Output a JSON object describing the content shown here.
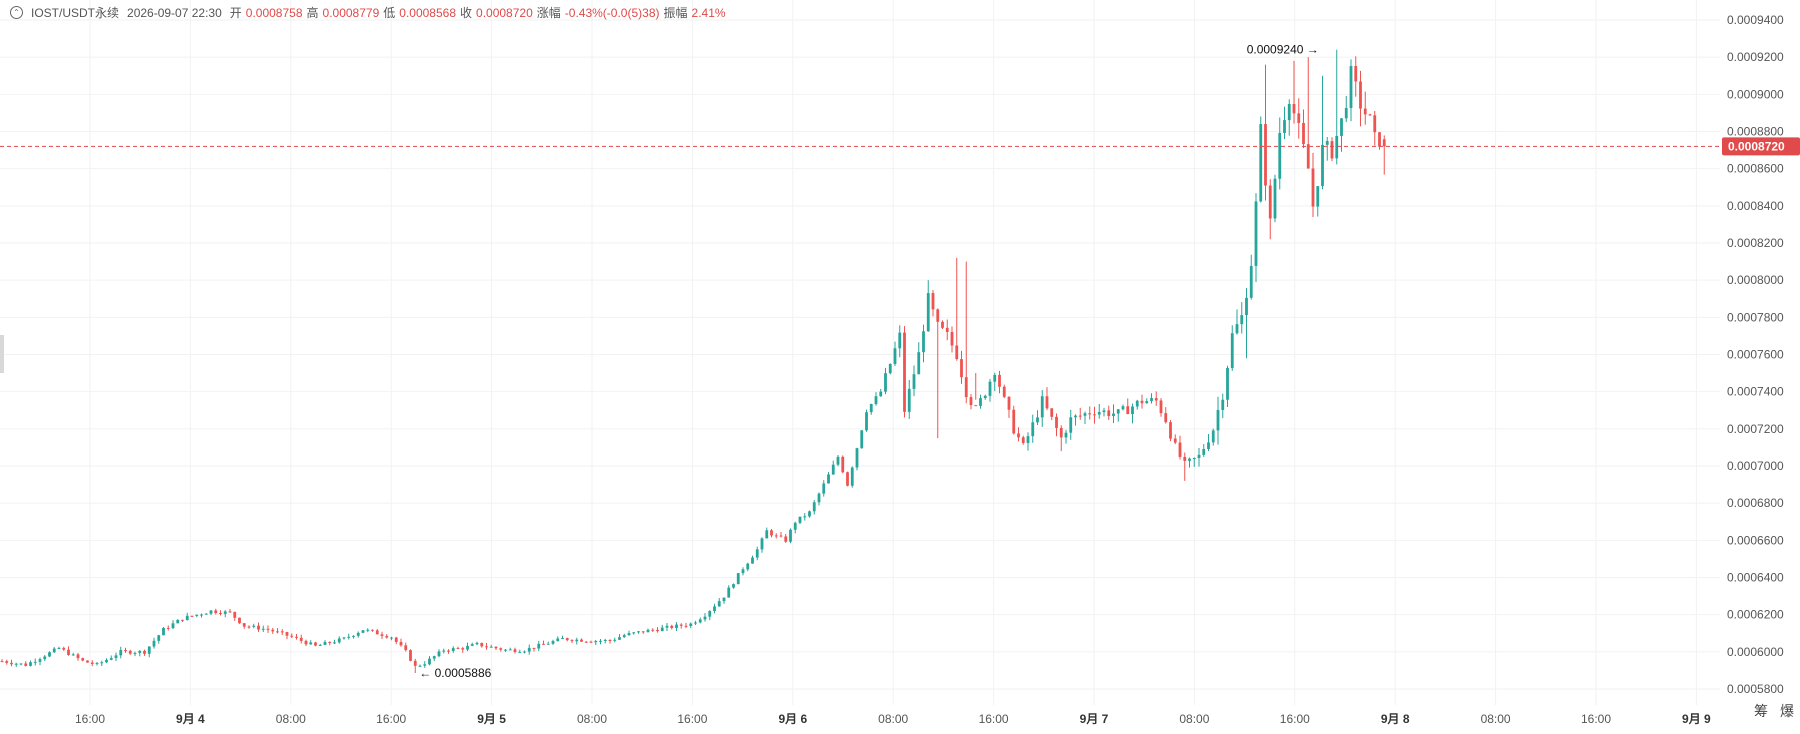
{
  "header": {
    "symbol": "IOST/USDT永续",
    "timestamp": "2026-09-07 22:30",
    "open_label": "开",
    "open": "0.0008758",
    "high_label": "高",
    "high": "0.0008779",
    "low_label": "低",
    "low": "0.0008568",
    "close_label": "收",
    "close": "0.0008720",
    "change_label": "涨幅",
    "change": "-0.43%(-0.0(5)38)",
    "amplitude_label": "振幅",
    "amplitude": "2.41%"
  },
  "colors": {
    "up": "#26a69a",
    "down": "#ef5350",
    "current_price": "#e04a4a",
    "grid": "#f2f2f2"
  },
  "icons": {
    "collapse": "chevron-up-circle-icon",
    "left_handle": "drag-handle-icon"
  },
  "corner": {
    "left": "筹",
    "right": "爆"
  },
  "current_price_label": "0.0008720",
  "chart_data": {
    "type": "candlestick",
    "ylim": [
      0.00057,
      0.00094
    ],
    "y_ticks": [
      "0.0009400",
      "0.0009200",
      "0.0009000",
      "0.0008800",
      "0.0008600",
      "0.0008400",
      "0.0008200",
      "0.0008000",
      "0.0007800",
      "0.0007600",
      "0.0007400",
      "0.0007200",
      "0.0007000",
      "0.0006800",
      "0.0006600",
      "0.0006400",
      "0.0006200",
      "0.0006000",
      "0.0005800"
    ],
    "y_tick_values": [
      0.00094,
      0.00092,
      0.0009,
      0.00088,
      0.00086,
      0.00084,
      0.00082,
      0.0008,
      0.00078,
      0.00076,
      0.00074,
      0.00072,
      0.0007,
      0.00068,
      0.00066,
      0.00064,
      0.00062,
      0.0006,
      0.00058
    ],
    "x_ticks": [
      "16:00",
      "9月 4",
      "08:00",
      "16:00",
      "9月 5",
      "08:00",
      "16:00",
      "9月 6",
      "08:00",
      "16:00",
      "9月 7",
      "08:00",
      "16:00",
      "9月 8",
      "08:00",
      "16:00",
      "9月 9"
    ],
    "x_tick_bold": [
      false,
      true,
      false,
      false,
      true,
      false,
      false,
      true,
      false,
      false,
      true,
      false,
      false,
      true,
      false,
      false,
      true
    ],
    "current_price": 0.000872,
    "annotations": [
      {
        "label": "0.0009240",
        "value": 0.000924,
        "type": "high"
      },
      {
        "label": "0.0005886",
        "value": 0.0005886,
        "type": "low"
      }
    ],
    "anchors": [
      [
        0,
        0.000595
      ],
      [
        5,
        0.000593
      ],
      [
        12,
        0.000602
      ],
      [
        17,
        0.000595
      ],
      [
        20,
        0.000593
      ],
      [
        25,
        0.0006
      ],
      [
        30,
        0.0006
      ],
      [
        34,
        0.000612
      ],
      [
        38,
        0.000618
      ],
      [
        44,
        0.000622
      ],
      [
        48,
        0.000621
      ],
      [
        51,
        0.000614
      ],
      [
        56,
        0.000612
      ],
      [
        61,
        0.000608
      ],
      [
        66,
        0.000603
      ],
      [
        72,
        0.000607
      ],
      [
        76,
        0.000612
      ],
      [
        82,
        0.000608
      ],
      [
        85,
        0.0006
      ],
      [
        87,
        0.000592
      ],
      [
        89,
        0.000594
      ],
      [
        93,
        0.000601
      ],
      [
        97,
        0.000602
      ],
      [
        100,
        0.000604
      ],
      [
        106,
        0.000601
      ],
      [
        110,
        0.000601
      ],
      [
        114,
        0.000604
      ],
      [
        118,
        0.000607
      ],
      [
        124,
        0.000606
      ],
      [
        128,
        0.000606
      ],
      [
        131,
        0.000609
      ],
      [
        135,
        0.000611
      ],
      [
        140,
        0.000613
      ],
      [
        145,
        0.000615
      ],
      [
        148,
        0.00062
      ],
      [
        152,
        0.00063
      ],
      [
        156,
        0.000645
      ],
      [
        159,
        0.000655
      ],
      [
        161,
        0.000665
      ],
      [
        163,
        0.000662
      ],
      [
        165,
        0.00066
      ],
      [
        167,
        0.00067
      ],
      [
        170,
        0.000675
      ],
      [
        173,
        0.00069
      ],
      [
        176,
        0.000705
      ],
      [
        178,
        0.00069
      ],
      [
        180,
        0.00071
      ],
      [
        182,
        0.00073
      ],
      [
        185,
        0.00074
      ],
      [
        187,
        0.000755
      ],
      [
        189,
        0.00077
      ],
      [
        190,
        0.00073
      ],
      [
        193,
        0.00076
      ],
      [
        195,
        0.00079
      ],
      [
        197,
        0.000775
      ],
      [
        199,
        0.00077
      ],
      [
        201,
        0.00076
      ],
      [
        203,
        0.00074
      ],
      [
        205,
        0.00073
      ],
      [
        207,
        0.00074
      ],
      [
        209,
        0.000752
      ],
      [
        211,
        0.000735
      ],
      [
        213,
        0.00072
      ],
      [
        215,
        0.00071
      ],
      [
        217,
        0.000722
      ],
      [
        219,
        0.000735
      ],
      [
        221,
        0.000725
      ],
      [
        223,
        0.000715
      ],
      [
        225,
        0.000725
      ],
      [
        230,
        0.00073
      ],
      [
        235,
        0.000728
      ],
      [
        240,
        0.000735
      ],
      [
        243,
        0.000735
      ],
      [
        245,
        0.000725
      ],
      [
        247,
        0.00071
      ],
      [
        249,
        0.0007
      ],
      [
        252,
        0.000705
      ],
      [
        255,
        0.00072
      ],
      [
        257,
        0.00074
      ],
      [
        259,
        0.00077
      ],
      [
        261,
        0.00078
      ],
      [
        263,
        0.00081
      ],
      [
        264,
        0.00084
      ],
      [
        265,
        0.00088
      ],
      [
        266,
        0.000855
      ],
      [
        267,
        0.00083
      ],
      [
        269,
        0.00088
      ],
      [
        271,
        0.0009
      ],
      [
        273,
        0.00088
      ],
      [
        275,
        0.00086
      ],
      [
        276,
        0.00084
      ],
      [
        278,
        0.00087
      ],
      [
        280,
        0.00087
      ],
      [
        282,
        0.000885
      ],
      [
        284,
        0.00091
      ],
      [
        286,
        0.000895
      ],
      [
        288,
        0.000885
      ],
      [
        289,
        0.000875
      ],
      [
        290,
        0.000876
      ],
      [
        291,
        0.000872
      ]
    ],
    "spikes": [
      {
        "i": 87,
        "low": 0.0005886
      },
      {
        "i": 195,
        "high": 0.0008
      },
      {
        "i": 197,
        "low": 0.000715
      },
      {
        "i": 201,
        "high": 0.000812
      },
      {
        "i": 203,
        "high": 0.00081
      },
      {
        "i": 205,
        "low": 0.00075
      },
      {
        "i": 223,
        "low": 0.000708
      },
      {
        "i": 249,
        "low": 0.000692
      },
      {
        "i": 262,
        "low": 0.000758
      },
      {
        "i": 266,
        "high": 0.000916
      },
      {
        "i": 267,
        "low": 0.000822
      },
      {
        "i": 272,
        "high": 0.000918
      },
      {
        "i": 275,
        "high": 0.00092
      },
      {
        "i": 276,
        "low": 0.000834
      },
      {
        "i": 278,
        "high": 0.00091
      },
      {
        "i": 281,
        "high": 0.000924
      }
    ]
  }
}
